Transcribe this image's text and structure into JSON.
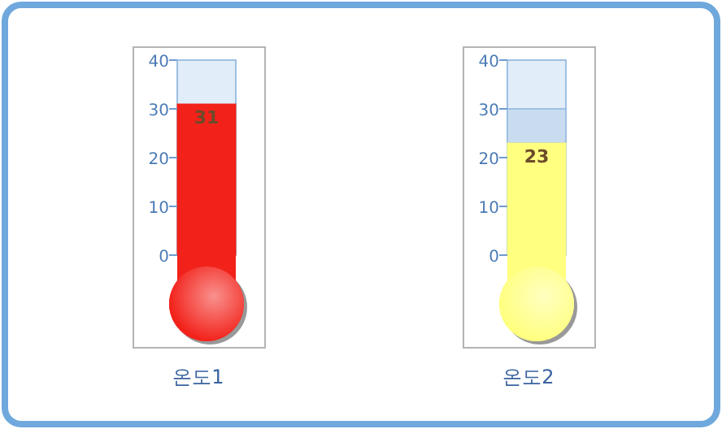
{
  "chart_data": [
    {
      "type": "bar",
      "categories": [
        "온도1"
      ],
      "values": [
        31
      ],
      "color": "#f2221b",
      "ylim": [
        -19,
        40
      ],
      "yticks": [
        0,
        10,
        20,
        30,
        40
      ],
      "data_labels": true,
      "bands": [
        {
          "axis": "y",
          "from": 0,
          "to": 40,
          "color": "#e1edf8"
        }
      ]
    },
    {
      "type": "bar",
      "categories": [
        "온도2"
      ],
      "values": [
        23
      ],
      "color": "#ffff80",
      "ylim": [
        -19,
        40
      ],
      "yticks": [
        0,
        10,
        20,
        30,
        40
      ],
      "data_labels": true,
      "bands": [
        {
          "axis": "y",
          "from": 0,
          "to": 40,
          "color": "#e1edf8"
        },
        {
          "axis": "y",
          "from": 23,
          "to": 30,
          "color": "#c9dcef"
        }
      ]
    }
  ]
}
